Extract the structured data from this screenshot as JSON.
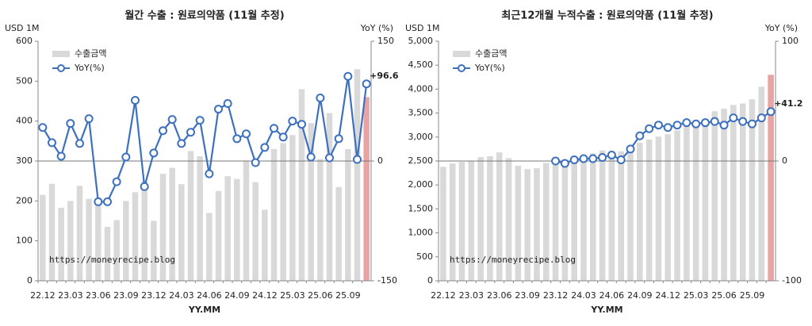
{
  "chart_data": [
    {
      "type": "combo",
      "title": "월간 수출 : 원료의약품 (11월 추정)",
      "ylabel": "USD 1M",
      "y2label": "YoY (%)",
      "xlabel": "YY.MM",
      "watermark": "https://moneyrecipe.blog",
      "categories": [
        "22.12",
        null,
        null,
        "23.03",
        null,
        null,
        "23.06",
        null,
        null,
        "23.09",
        null,
        null,
        "23.12",
        null,
        null,
        "24.03",
        null,
        null,
        "24.06",
        null,
        null,
        "24.09",
        null,
        null,
        "24.12",
        null,
        null,
        "25.03",
        null,
        null,
        "25.06",
        null,
        null,
        "25.09",
        null,
        null
      ],
      "ylim": [
        0,
        600
      ],
      "yticks": [
        0,
        100,
        200,
        300,
        400,
        500,
        600
      ],
      "y2lim": [
        -150,
        150
      ],
      "y2ticks": [
        -150,
        0,
        150
      ],
      "series": [
        {
          "name": "수출금액",
          "kind": "bar",
          "color": "#d9d9d9",
          "last_color": "#eaa3a3",
          "values": [
            215,
            243,
            183,
            200,
            238,
            205,
            203,
            135,
            152,
            200,
            222,
            250,
            150,
            268,
            283,
            242,
            325,
            312,
            170,
            225,
            262,
            255,
            300,
            247,
            178,
            330,
            345,
            365,
            480,
            395,
            305,
            420,
            235,
            330,
            530,
            460
          ]
        },
        {
          "name": "YoY(%)",
          "kind": "line",
          "axis": "y2",
          "color": "#3d70bf",
          "label_color": "#e03030",
          "values": [
            42,
            23,
            6,
            47,
            22,
            53,
            -51,
            -51,
            -26,
            5,
            76,
            -32,
            10,
            38,
            52,
            22,
            36,
            51,
            -16,
            65,
            72,
            28,
            34,
            -2,
            17,
            41,
            30,
            50,
            46,
            5,
            79,
            4,
            28,
            106,
            2,
            96.6
          ],
          "value_labels": [
            null,
            null,
            null,
            null,
            null,
            null,
            null,
            null,
            null,
            null,
            null,
            null,
            null,
            null,
            null,
            null,
            null,
            null,
            null,
            null,
            null,
            null,
            null,
            null,
            null,
            null,
            null,
            null,
            null,
            null,
            null,
            null,
            null,
            null,
            null,
            "+96.6"
          ]
        }
      ]
    },
    {
      "type": "combo",
      "title": "최근12개월 누적수출 : 원료의약품 (11월 추정)",
      "ylabel": "USD 1M",
      "y2label": "YoY (%)",
      "xlabel": "YY.MM",
      "watermark": "https://moneyrecipe.blog",
      "categories": [
        "22.12",
        null,
        null,
        "23.03",
        null,
        null,
        "23.06",
        null,
        null,
        "23.09",
        null,
        null,
        "23.12",
        null,
        null,
        "24.03",
        null,
        null,
        "24.06",
        null,
        null,
        "24.09",
        null,
        null,
        "24.12",
        null,
        null,
        "25.03",
        null,
        null,
        "25.06",
        null,
        null,
        "25.09",
        null,
        null
      ],
      "ylim": [
        0,
        5000
      ],
      "yticks": [
        0,
        500,
        {
          "value": 1000,
          "label": "1,000"
        },
        {
          "value": 1500,
          "label": "1,500"
        },
        {
          "value": 2000,
          "label": "2,000"
        },
        {
          "value": 2500,
          "label": "2,500"
        },
        {
          "value": 3000,
          "label": "3,000"
        },
        {
          "value": 3500,
          "label": "3,500"
        },
        {
          "value": 4000,
          "label": "4,000"
        },
        {
          "value": 4500,
          "label": "4,500"
        },
        {
          "value": 5000,
          "label": "5,000"
        }
      ],
      "y2lim": [
        -100,
        100
      ],
      "y2ticks": [
        -100,
        0,
        100
      ],
      "series": [
        {
          "name": "수출금액",
          "kind": "bar",
          "color": "#d9d9d9",
          "last_color": "#eaa3a3",
          "values": [
            2380,
            2450,
            2480,
            2500,
            2580,
            2600,
            2680,
            2560,
            2400,
            2330,
            2350,
            2460,
            2420,
            2500,
            2530,
            2560,
            2660,
            2720,
            2660,
            2700,
            2790,
            2880,
            2950,
            3010,
            3060,
            3140,
            3230,
            3290,
            3330,
            3540,
            3590,
            3670,
            3700,
            3790,
            4050,
            4300
          ]
        },
        {
          "name": "YoY(%)",
          "kind": "line",
          "axis": "y2",
          "color": "#3d70bf",
          "label_color": "#e03030",
          "values": [
            null,
            null,
            null,
            null,
            null,
            null,
            null,
            null,
            null,
            null,
            null,
            null,
            0,
            -2,
            1,
            2,
            2,
            3,
            5,
            1,
            10,
            21,
            27,
            30,
            28,
            30,
            32,
            31,
            32,
            33,
            30,
            36,
            33,
            31,
            36,
            41.2
          ],
          "value_labels": [
            null,
            null,
            null,
            null,
            null,
            null,
            null,
            null,
            null,
            null,
            null,
            null,
            null,
            null,
            null,
            null,
            null,
            null,
            null,
            null,
            null,
            null,
            null,
            null,
            null,
            null,
            null,
            null,
            null,
            null,
            null,
            null,
            null,
            null,
            null,
            "+41.2"
          ]
        }
      ]
    }
  ]
}
